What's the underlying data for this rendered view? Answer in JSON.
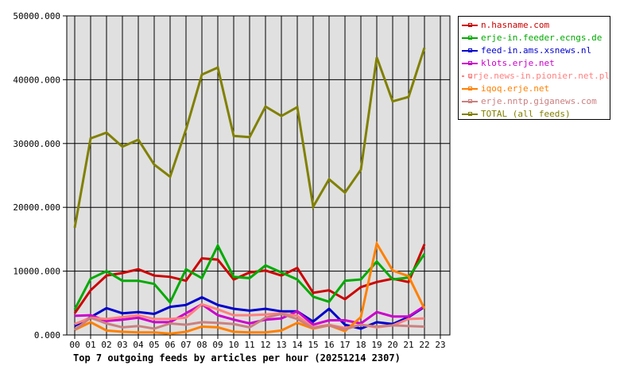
{
  "chart_data": {
    "type": "line",
    "title": "Top 7 outgoing feeds by articles per hour (20251214 2307)",
    "xlabel": "",
    "ylabel": "",
    "ylim": [
      0,
      50000
    ],
    "yticks": [
      "0.000",
      "10000.000",
      "20000.000",
      "30000.000",
      "40000.000",
      "50000.000"
    ],
    "grid": true,
    "legend_position": "right-top",
    "x": [
      "00",
      "01",
      "02",
      "03",
      "04",
      "05",
      "06",
      "07",
      "08",
      "09",
      "10",
      "11",
      "12",
      "13",
      "14",
      "15",
      "16",
      "17",
      "18",
      "19",
      "20",
      "21",
      "22",
      "23"
    ],
    "series": [
      {
        "name": "n.hasname.com",
        "color": "#cc0000",
        "values": [
          3400,
          7000,
          9300,
          9700,
          10300,
          9300,
          9100,
          8500,
          12000,
          11800,
          8700,
          9800,
          10100,
          9300,
          10500,
          6600,
          7000,
          5600,
          7500,
          8300,
          8800,
          8300,
          14200
        ]
      },
      {
        "name": "erje-in.feeder.ecngs.de",
        "color": "#00aa00",
        "values": [
          4000,
          8800,
          10000,
          8500,
          8500,
          8000,
          5100,
          10300,
          8900,
          14000,
          9100,
          8900,
          10900,
          9800,
          8700,
          6000,
          5200,
          8500,
          8700,
          11500,
          8700,
          9000,
          12700
        ]
      },
      {
        "name": "feed-in.ams.xsnews.nl",
        "color": "#0000cc",
        "values": [
          1400,
          2800,
          4200,
          3400,
          3600,
          3300,
          4400,
          4700,
          5900,
          4700,
          4100,
          3800,
          4100,
          3700,
          3700,
          2100,
          4100,
          1600,
          1000,
          2000,
          1700,
          2800,
          4400
        ]
      },
      {
        "name": "klots.erje.net",
        "color": "#cc00cc",
        "values": [
          3000,
          3100,
          2200,
          2400,
          2700,
          2000,
          2000,
          3400,
          4800,
          3100,
          2400,
          1800,
          2400,
          2600,
          3700,
          1600,
          2300,
          2300,
          1800,
          3600,
          2900,
          2900,
          4500
        ]
      },
      {
        "name": "erje.news-in.pionier.net.pl",
        "color": "#ff8080",
        "values": [
          1700,
          2700,
          2500,
          2800,
          3100,
          2500,
          2500,
          2700,
          4800,
          4000,
          3100,
          3100,
          3200,
          3400,
          3000,
          1200,
          1600,
          1100,
          1600,
          1200,
          1500,
          2500,
          2600
        ]
      },
      {
        "name": "iqoq.erje.net",
        "color": "#ff8000",
        "values": [
          800,
          2000,
          700,
          500,
          400,
          400,
          200,
          500,
          1300,
          1200,
          500,
          400,
          400,
          700,
          1900,
          1000,
          1500,
          600,
          2800,
          14300,
          10100,
          9200,
          4100
        ]
      },
      {
        "name": "erje.nntp.giganews.com",
        "color": "#cc8080",
        "values": [
          800,
          2700,
          1800,
          1200,
          1400,
          1000,
          1800,
          1600,
          2000,
          1900,
          1700,
          1200,
          2700,
          3300,
          2500,
          1100,
          1500,
          900,
          1600,
          1300,
          1500,
          1400,
          1300
        ]
      },
      {
        "name": "TOTAL (all feeds)",
        "color": "#808000",
        "values": [
          16800,
          30800,
          31700,
          29500,
          30600,
          26700,
          24800,
          32200,
          40800,
          41900,
          31200,
          31000,
          35800,
          34300,
          35700,
          20100,
          24400,
          22300,
          25900,
          43500,
          36600,
          37300,
          45000
        ]
      }
    ]
  },
  "legend": {
    "items": [
      {
        "label": "n.hasname.com",
        "color": "#cc0000"
      },
      {
        "label": "erje-in.feeder.ecngs.de",
        "color": "#00aa00"
      },
      {
        "label": "feed-in.ams.xsnews.nl",
        "color": "#0000cc"
      },
      {
        "label": "klots.erje.net",
        "color": "#cc00cc"
      },
      {
        "label": "erje.news-in.pionier.net.pl",
        "color": "#ff8080"
      },
      {
        "label": "iqoq.erje.net",
        "color": "#ff8000"
      },
      {
        "label": "erje.nntp.giganews.com",
        "color": "#cc8080"
      },
      {
        "label": "TOTAL (all feeds)",
        "color": "#808000"
      }
    ]
  },
  "caption": "Top 7 outgoing feeds by articles per hour (20251214 2307)"
}
